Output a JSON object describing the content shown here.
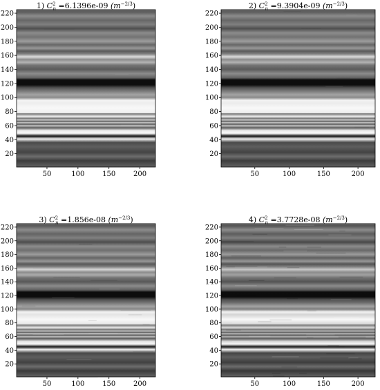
{
  "chart_data": [
    {
      "type": "heatmap",
      "title_prefix": "1) ",
      "title_symbol": "C",
      "title_sub": "n",
      "title_sup": "2",
      "title_value": " =6.1396e-09 ",
      "title_unit": "(m",
      "title_unit_exp": "−2/3",
      "title_unit_close": ")",
      "xticks": [
        50,
        100,
        150,
        200
      ],
      "yticks": [
        20,
        40,
        60,
        80,
        100,
        120,
        140,
        160,
        180,
        200,
        220
      ],
      "xlim": [
        1,
        225
      ],
      "ylim": [
        1,
        225
      ],
      "turbulence": 0.05
    },
    {
      "type": "heatmap",
      "title_prefix": "2) ",
      "title_symbol": "C",
      "title_sub": "n",
      "title_sup": "2",
      "title_value": " =9.3904e-09 ",
      "title_unit": "(m",
      "title_unit_exp": "−2/3",
      "title_unit_close": ")",
      "xticks": [
        50,
        100,
        150,
        200
      ],
      "yticks": [
        20,
        40,
        60,
        80,
        100,
        120,
        140,
        160,
        180,
        200,
        220
      ],
      "xlim": [
        1,
        225
      ],
      "ylim": [
        1,
        225
      ],
      "turbulence": 0.1
    },
    {
      "type": "heatmap",
      "title_prefix": "3) ",
      "title_symbol": "C",
      "title_sub": "n",
      "title_sup": "2",
      "title_value": " =1.856e-08 ",
      "title_unit": "(m",
      "title_unit_exp": "−2/3",
      "title_unit_close": ")",
      "xticks": [
        50,
        100,
        150,
        200
      ],
      "yticks": [
        20,
        40,
        60,
        80,
        100,
        120,
        140,
        160,
        180,
        200,
        220
      ],
      "xlim": [
        1,
        225
      ],
      "ylim": [
        1,
        225
      ],
      "turbulence": 0.3
    },
    {
      "type": "heatmap",
      "title_prefix": "4) ",
      "title_symbol": "C",
      "title_sub": "n",
      "title_sup": "2",
      "title_value": " =3.7728e-08 ",
      "title_unit": "(m",
      "title_unit_exp": "−2/3",
      "title_unit_close": ")",
      "xticks": [
        50,
        100,
        150,
        200
      ],
      "yticks": [
        20,
        40,
        60,
        80,
        100,
        120,
        140,
        160,
        180,
        200,
        220
      ],
      "xlim": [
        1,
        225
      ],
      "ylim": [
        1,
        225
      ],
      "turbulence": 0.75
    }
  ]
}
